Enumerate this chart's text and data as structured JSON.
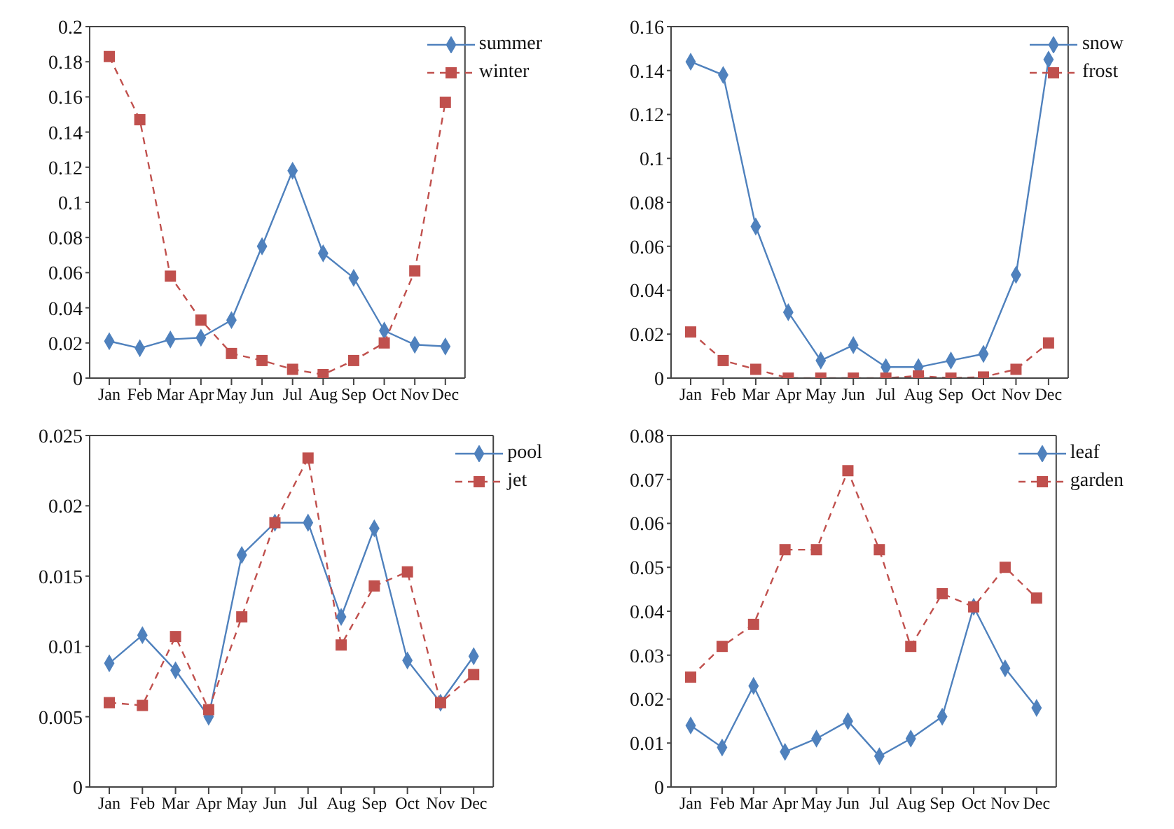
{
  "chart_data": [
    {
      "type": "line",
      "categories": [
        "Jan",
        "Feb",
        "Mar",
        "Apr",
        "May",
        "Jun",
        "Jul",
        "Aug",
        "Sep",
        "Oct",
        "Nov",
        "Dec"
      ],
      "ylim": [
        0,
        0.2
      ],
      "yticks": [
        0,
        0.02,
        0.04,
        0.06,
        0.08,
        0.1,
        0.12,
        0.14,
        0.16,
        0.18,
        0.2
      ],
      "grid": false,
      "legend": "top right",
      "series": [
        {
          "name": "summer",
          "color": "#4f81bd",
          "marker": "diamond",
          "line_style": "solid",
          "values": [
            0.021,
            0.017,
            0.022,
            0.023,
            0.033,
            0.075,
            0.118,
            0.071,
            0.057,
            0.027,
            0.019,
            0.018
          ]
        },
        {
          "name": "winter",
          "color": "#c0504d",
          "marker": "square",
          "line_style": "dashed",
          "values": [
            0.183,
            0.147,
            0.058,
            0.033,
            0.014,
            0.01,
            0.005,
            0.002,
            0.01,
            0.02,
            0.061,
            0.157
          ]
        }
      ]
    },
    {
      "type": "line",
      "categories": [
        "Jan",
        "Feb",
        "Mar",
        "Apr",
        "May",
        "Jun",
        "Jul",
        "Aug",
        "Sep",
        "Oct",
        "Nov",
        "Dec"
      ],
      "ylim": [
        0,
        0.16
      ],
      "yticks": [
        0,
        0.02,
        0.04,
        0.06,
        0.08,
        0.1,
        0.12,
        0.14,
        0.16
      ],
      "grid": false,
      "legend": "top right",
      "series": [
        {
          "name": "snow",
          "color": "#4f81bd",
          "marker": "diamond",
          "line_style": "solid",
          "values": [
            0.144,
            0.138,
            0.069,
            0.03,
            0.008,
            0.015,
            0.005,
            0.005,
            0.008,
            0.011,
            0.047,
            0.145
          ]
        },
        {
          "name": "frost",
          "color": "#c0504d",
          "marker": "square",
          "line_style": "dashed",
          "values": [
            0.021,
            0.008,
            0.004,
            0,
            0,
            0,
            0,
            0.001,
            0,
            0.0005,
            0.004,
            0.016
          ]
        }
      ]
    },
    {
      "type": "line",
      "categories": [
        "Jan",
        "Feb",
        "Mar",
        "Apr",
        "May",
        "Jun",
        "Jul",
        "Aug",
        "Sep",
        "Oct",
        "Nov",
        "Dec"
      ],
      "ylim": [
        0,
        0.025
      ],
      "yticks": [
        0,
        0.005,
        0.01,
        0.015,
        0.02,
        0.025
      ],
      "grid": false,
      "legend": "top right",
      "series": [
        {
          "name": "pool",
          "color": "#4f81bd",
          "marker": "diamond",
          "line_style": "solid",
          "values": [
            0.0088,
            0.0108,
            0.0083,
            0.005,
            0.0165,
            0.0188,
            0.0188,
            0.0121,
            0.0184,
            0.009,
            0.006,
            0.0093
          ]
        },
        {
          "name": "jet",
          "color": "#c0504d",
          "marker": "square",
          "line_style": "dashed",
          "values": [
            0.006,
            0.0058,
            0.0107,
            0.0055,
            0.0121,
            0.0188,
            0.0234,
            0.0101,
            0.0143,
            0.0153,
            0.006,
            0.008
          ]
        }
      ]
    },
    {
      "type": "line",
      "categories": [
        "Jan",
        "Feb",
        "Mar",
        "Apr",
        "May",
        "Jun",
        "Jul",
        "Aug",
        "Sep",
        "Oct",
        "Nov",
        "Dec"
      ],
      "ylim": [
        0,
        0.08
      ],
      "yticks": [
        0,
        0.01,
        0.02,
        0.03,
        0.04,
        0.05,
        0.06,
        0.07,
        0.08
      ],
      "grid": false,
      "legend": "top right",
      "series": [
        {
          "name": "leaf",
          "color": "#4f81bd",
          "marker": "diamond",
          "line_style": "solid",
          "values": [
            0.014,
            0.009,
            0.023,
            0.008,
            0.011,
            0.015,
            0.007,
            0.011,
            0.016,
            0.041,
            0.027,
            0.018
          ]
        },
        {
          "name": "garden",
          "color": "#c0504d",
          "marker": "square",
          "line_style": "dashed",
          "values": [
            0.025,
            0.032,
            0.037,
            0.054,
            0.054,
            0.072,
            0.054,
            0.032,
            0.044,
            0.041,
            0.05,
            0.043
          ]
        }
      ]
    }
  ]
}
